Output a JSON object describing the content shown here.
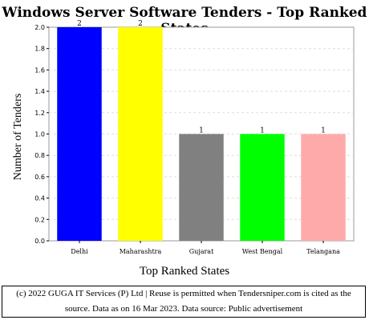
{
  "chart_data": {
    "type": "bar",
    "title": "Windows Server Software Tenders - Top Ranked States",
    "xlabel": "Top Ranked States",
    "ylabel": "Number of Tenders",
    "categories": [
      "Delhi",
      "Maharashtra",
      "Gujarat",
      "West Bengal",
      "Telangana"
    ],
    "values": [
      2,
      2,
      1,
      1,
      1
    ],
    "colors": [
      "#0000ff",
      "#ffff00",
      "#808080",
      "#00ff00",
      "#ffaaaa"
    ],
    "ylim": [
      0,
      2.0
    ],
    "yticks": [
      "0.0",
      "0.2",
      "0.4",
      "0.6",
      "0.8",
      "1.0",
      "1.2",
      "1.4",
      "1.6",
      "1.8",
      "2.0"
    ],
    "data_labels": [
      "2",
      "2",
      "1",
      "1",
      "1"
    ],
    "grid": true
  },
  "footer": {
    "line1": "(c) 2022 GUGA IT Services (P) Ltd | Reuse is permitted when Tendersniper.com is cited as the",
    "line2": "source. Data as on 16 Mar 2023. Data source: Public advertisement"
  }
}
